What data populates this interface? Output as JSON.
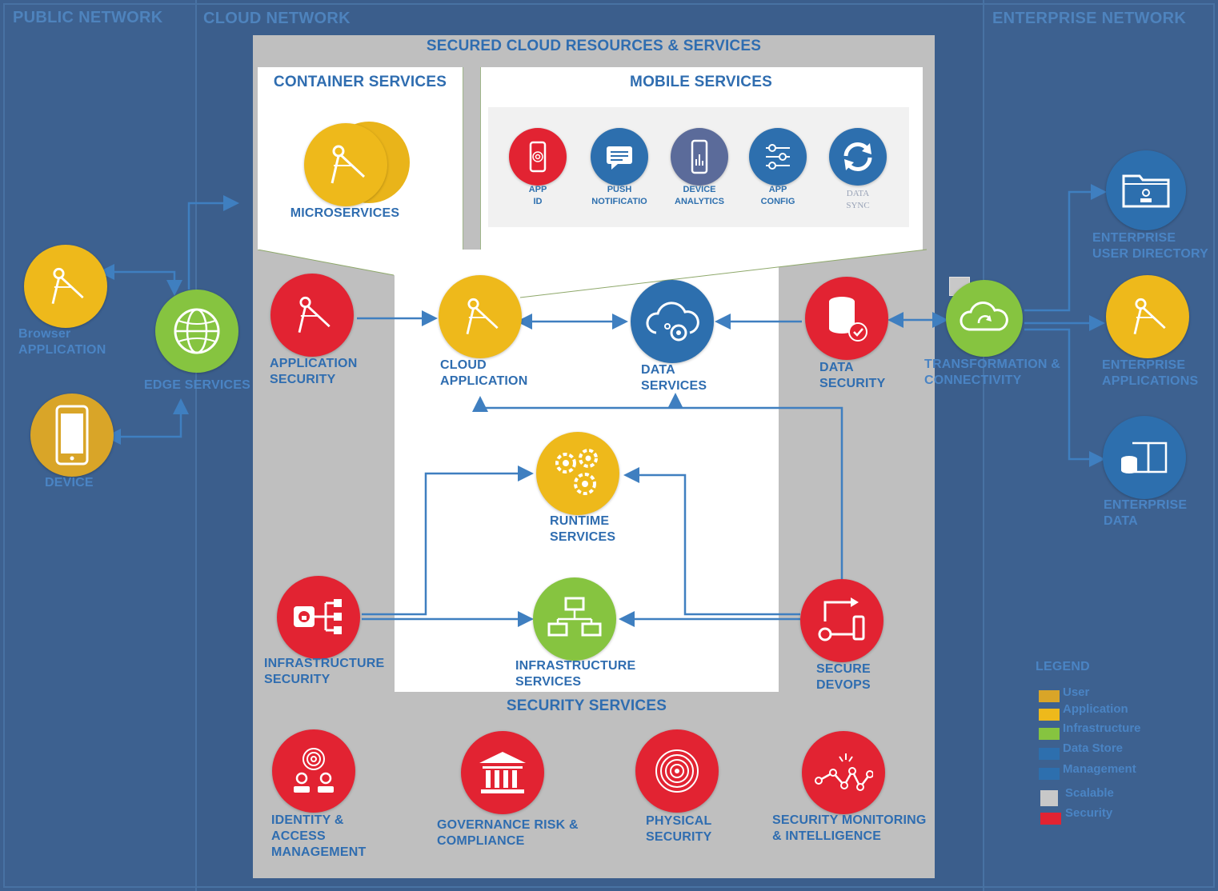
{
  "zones": {
    "public": "PUBLIC NETWORK",
    "cloud": "CLOUD NETWORK",
    "enterprise": "ENTERPRISE NETWORK"
  },
  "secured": {
    "title": "SECURED CLOUD RESOURCES & SERVICES",
    "container_title": "CONTAINER SERVICES",
    "microservices": "MICROSERVICES",
    "mobile_title": "MOBILE SERVICES",
    "mobile": [
      {
        "line1": "APP",
        "line2": "ID",
        "color": "#e22332",
        "icon": "fingerprint-phone-icon"
      },
      {
        "line1": "PUSH",
        "line2": "NOTIFICATIO",
        "color": "#2d6fae",
        "icon": "chat-bubble-icon"
      },
      {
        "line1": "DEVICE",
        "line2": "ANALYTICS",
        "color": "#5b6b9a",
        "icon": "phone-chart-icon"
      },
      {
        "line1": "APP",
        "line2": "CONFIG",
        "color": "#2d6fae",
        "icon": "sliders-icon"
      },
      {
        "line1": "DATA",
        "line2": "SYNC",
        "color": "#2d6fae",
        "icon": "sync-icon"
      }
    ]
  },
  "public": {
    "browser_1": "Browser",
    "browser_2": "APPLICATION",
    "device": "DEVICE",
    "edge": "EDGE SERVICES"
  },
  "core": {
    "app_sec_1": "APPLICATION",
    "app_sec_2": "SECURITY",
    "cloud_app_1": "CLOUD",
    "cloud_app_2": "APPLICATION",
    "data_svc_1": "DATA",
    "data_svc_2": "SERVICES",
    "data_sec_1": "DATA",
    "data_sec_2": "SECURITY",
    "runtime_1": "RUNTIME",
    "runtime_2": "SERVICES",
    "infra_sec_1": "INFRASTRUCTURE",
    "infra_sec_2": "SECURITY",
    "infra_svc_1": "INFRASTRUCTURE",
    "infra_svc_2": "SERVICES",
    "devops_1": "SECURE",
    "devops_2": "DEVOPS"
  },
  "security": {
    "title": "SECURITY SERVICES",
    "iam_1": "IDENTITY &",
    "iam_2": "ACCESS",
    "iam_3": "MANAGEMENT",
    "grc_1": "GOVERNANCE RISK &",
    "grc_2": "COMPLIANCE",
    "phys_1": "PHYSICAL",
    "phys_2": "SECURITY",
    "mon_1": "SECURITY MONITORING",
    "mon_2": "& INTELLIGENCE"
  },
  "enterprise": {
    "transform_1": "TRANSFORMATION &",
    "transform_2": "CONNECTIVITY",
    "dir_1": "ENTERPRISE",
    "dir_2": "USER DIRECTORY",
    "apps_1": "ENTERPRISE",
    "apps_2": "APPLICATIONS",
    "data_1": "ENTERPRISE",
    "data_2": "DATA"
  },
  "legend": {
    "title": "LEGEND",
    "items": [
      {
        "label": "User",
        "color": "#d9a528"
      },
      {
        "label": "Application",
        "color": "#eeb91b"
      },
      {
        "label": "Infrastructure",
        "color": "#86c440"
      },
      {
        "label": "Data Store",
        "color": "#2d6fae"
      },
      {
        "label": "Management",
        "color": "#2d6fae"
      },
      {
        "label": "Scalable",
        "color": "#c8c8c8"
      },
      {
        "label": "Security",
        "color": "#e22332"
      }
    ]
  }
}
